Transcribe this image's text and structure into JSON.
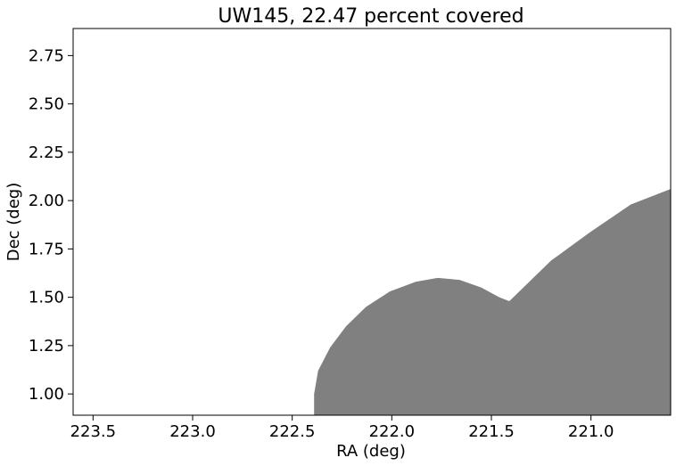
{
  "chart_data": {
    "type": "area",
    "title": "UW145, 22.47 percent covered",
    "xlabel": "RA (deg)",
    "ylabel": "Dec (deg)",
    "xlim": [
      223.6,
      220.6
    ],
    "ylim": [
      0.89,
      2.89
    ],
    "x_inverted": true,
    "xticks": [
      223.5,
      223.0,
      222.5,
      222.0,
      221.5,
      221.0
    ],
    "xtick_labels": [
      "223.5",
      "223.0",
      "222.5",
      "222.0",
      "221.5",
      "221.0"
    ],
    "yticks": [
      1.0,
      1.25,
      1.5,
      1.75,
      2.0,
      2.25,
      2.5,
      2.75
    ],
    "ytick_labels": [
      "1.00",
      "1.25",
      "1.50",
      "1.75",
      "2.00",
      "2.25",
      "2.50",
      "2.75"
    ],
    "grid": false,
    "fill_color": "#808080",
    "covered_percent": 22.47,
    "covered_region": {
      "name": "covered",
      "points": [
        [
          222.39,
          0.89
        ],
        [
          222.39,
          1.0
        ],
        [
          222.37,
          1.12
        ],
        [
          222.31,
          1.24
        ],
        [
          222.23,
          1.35
        ],
        [
          222.13,
          1.45
        ],
        [
          222.01,
          1.53
        ],
        [
          221.88,
          1.58
        ],
        [
          221.77,
          1.6
        ],
        [
          221.66,
          1.59
        ],
        [
          221.55,
          1.55
        ],
        [
          221.46,
          1.5
        ],
        [
          221.41,
          1.48
        ],
        [
          221.38,
          1.51
        ],
        [
          221.2,
          1.69
        ],
        [
          221.0,
          1.84
        ],
        [
          220.8,
          1.98
        ],
        [
          220.6,
          2.06
        ],
        [
          220.6,
          0.89
        ]
      ]
    }
  }
}
